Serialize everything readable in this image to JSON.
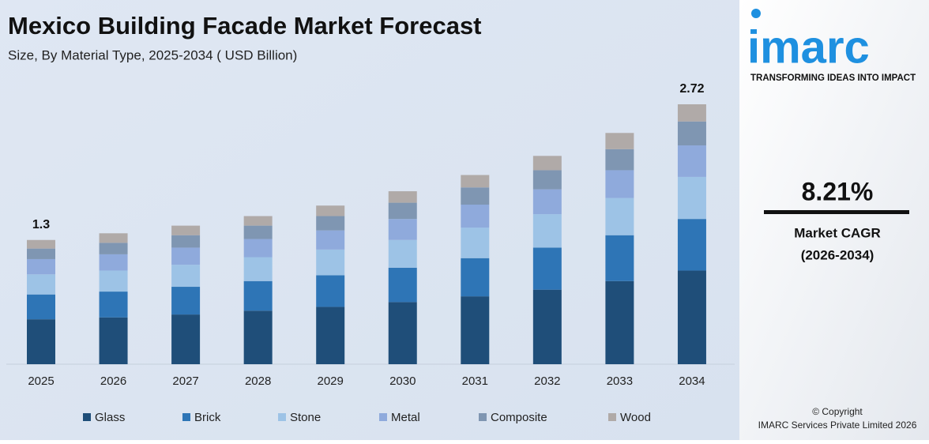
{
  "chart_data": {
    "type": "stacked-bar",
    "title": "Mexico Building Facade Market Forecast",
    "subtitle": "Size, By Material Type, 2025-2034 ( USD Billion)",
    "categories": [
      "2025",
      "2026",
      "2027",
      "2028",
      "2029",
      "2030",
      "2031",
      "2032",
      "2033",
      "2034"
    ],
    "series": [
      {
        "name": "Glass",
        "color": "#1f4e79",
        "values": [
          0.47,
          0.49,
          0.52,
          0.56,
          0.6,
          0.65,
          0.71,
          0.78,
          0.87,
          0.98
        ]
      },
      {
        "name": "Brick",
        "color": "#2e75b6",
        "values": [
          0.26,
          0.27,
          0.29,
          0.31,
          0.33,
          0.36,
          0.4,
          0.44,
          0.48,
          0.54
        ]
      },
      {
        "name": "Stone",
        "color": "#9dc3e6",
        "values": [
          0.21,
          0.22,
          0.23,
          0.25,
          0.27,
          0.29,
          0.32,
          0.35,
          0.39,
          0.44
        ]
      },
      {
        "name": "Metal",
        "color": "#8faadc",
        "values": [
          0.16,
          0.17,
          0.18,
          0.19,
          0.2,
          0.22,
          0.24,
          0.26,
          0.29,
          0.33
        ]
      },
      {
        "name": "Composite",
        "color": "#7f96b2",
        "values": [
          0.11,
          0.12,
          0.13,
          0.14,
          0.15,
          0.17,
          0.18,
          0.2,
          0.22,
          0.25
        ]
      },
      {
        "name": "Wood",
        "color": "#b0aaa8",
        "values": [
          0.09,
          0.1,
          0.1,
          0.1,
          0.11,
          0.12,
          0.13,
          0.15,
          0.17,
          0.18
        ]
      }
    ],
    "total_labels": [
      1.3,
      null,
      null,
      null,
      null,
      null,
      null,
      null,
      null,
      2.72
    ]
  },
  "sidebar": {
    "logo": "imarc",
    "tagline": "TRANSFORMING IDEAS INTO IMPACT",
    "cagr": "8.21%",
    "cagr_label": "Market CAGR",
    "cagr_period": "(2026-2034)",
    "copyright": "© Copyright",
    "company": "IMARC Services Private Limited 2026"
  }
}
